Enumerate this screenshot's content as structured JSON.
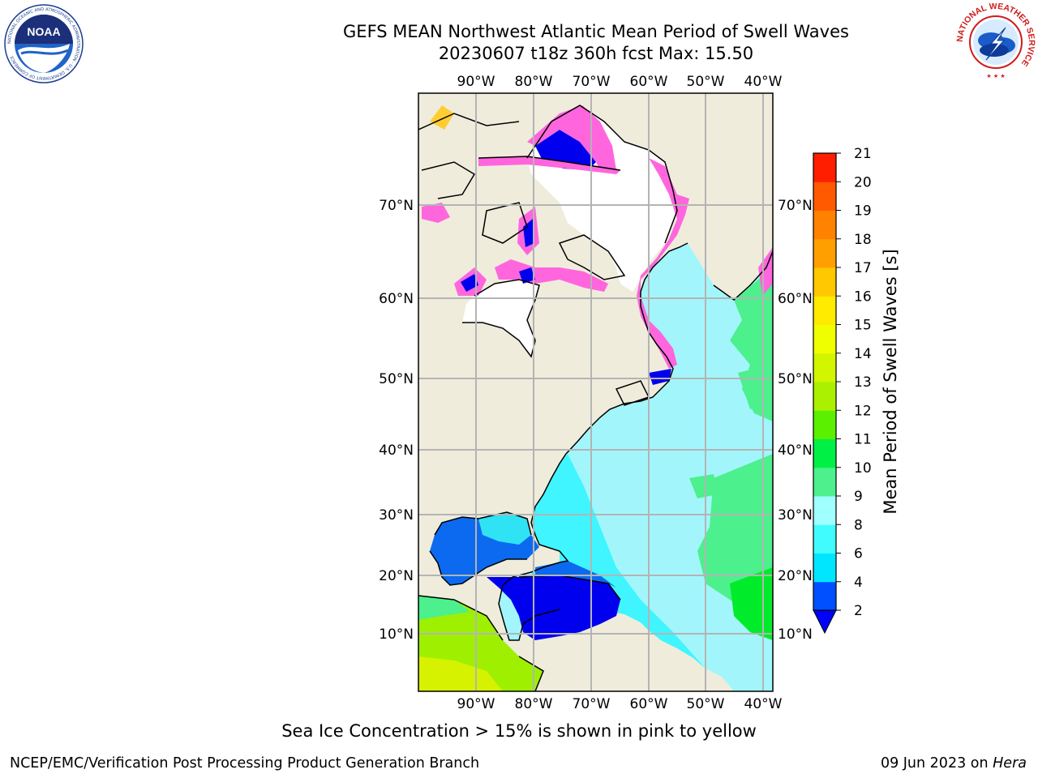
{
  "title": {
    "line1": "GEFS MEAN Northwest Atlantic Mean Period of Swell Waves",
    "line2": "20230607 t18z 360h fcst   Max: 15.50"
  },
  "logos": {
    "noaa": {
      "text": "NOAA",
      "ring_text": "NATIONAL OCEANIC AND ATMOSPHERIC ADMINISTRATION · U.S. DEPARTMENT OF COMMERCE"
    },
    "nws": {
      "ring_text": "NATIONAL WEATHER SERVICE"
    }
  },
  "map": {
    "lon_labels": [
      "90°W",
      "80°W",
      "70°W",
      "60°W",
      "50°W",
      "40°W"
    ],
    "lat_labels": [
      "70°N",
      "60°N",
      "50°N",
      "40°N",
      "30°N",
      "20°N",
      "10°N"
    ],
    "colors": {
      "land": "#efecdc",
      "ice_free_white": "#ffffff",
      "grid": "#b4b4b4",
      "coast": "#000000"
    }
  },
  "colorbar": {
    "label": "Mean Period of Swell Waves [s]",
    "ticks": [
      "2",
      "4",
      "6",
      "8",
      "9",
      "10",
      "11",
      "12",
      "13",
      "14",
      "15",
      "16",
      "17",
      "18",
      "19",
      "20",
      "21"
    ],
    "colors": [
      "#0050ff",
      "#00e6ff",
      "#40fcff",
      "#a0ffff",
      "#4cf08c",
      "#00f046",
      "#5af000",
      "#aaf000",
      "#d2f500",
      "#f0ff00",
      "#ffeb00",
      "#ffc800",
      "#ffa000",
      "#ff8200",
      "#ff5a00",
      "#ff1e00"
    ],
    "under_color": "#0000ff"
  },
  "caption": "Sea Ice Concentration > 15% is shown in pink to yellow",
  "footer": {
    "left": "NCEP/EMC/Verification Post Processing Product Generation Branch",
    "date": "09 Jun 2023 on ",
    "machine": "Hera"
  }
}
